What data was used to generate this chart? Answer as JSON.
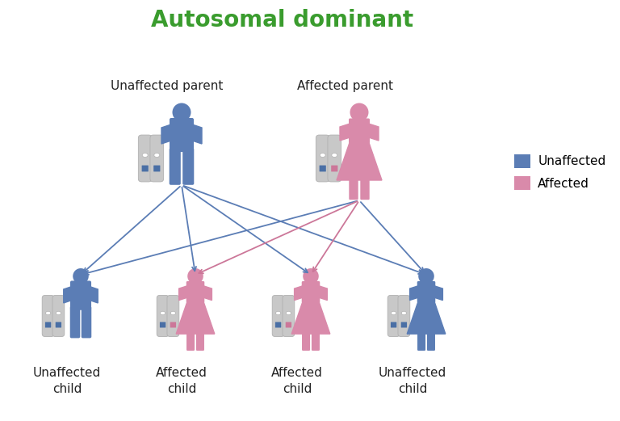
{
  "title": "Autosomal dominant",
  "title_color": "#3a9c2e",
  "title_fontsize": 20,
  "blue_color": "#5b7db5",
  "pink_color": "#d98aaa",
  "chrom_color": "#c8c8c8",
  "chrom_outline": "#b0b0b0",
  "blue_marker": "#4a6fa5",
  "pink_marker": "#cc7799",
  "arrow_blue": "#5b7db5",
  "arrow_pink": "#cc7799",
  "legend_blue_label": "Unaffected",
  "legend_pink_label": "Affected",
  "parent_labels": [
    "Unaffected parent",
    "Affected parent"
  ],
  "child_labels": [
    [
      "Unaffected",
      "child"
    ],
    [
      "Affected",
      "child"
    ],
    [
      "Affected",
      "child"
    ],
    [
      "Unaffected",
      "child"
    ]
  ],
  "label_fontsize": 11,
  "legend_fontsize": 11,
  "bg_color": "#ffffff"
}
